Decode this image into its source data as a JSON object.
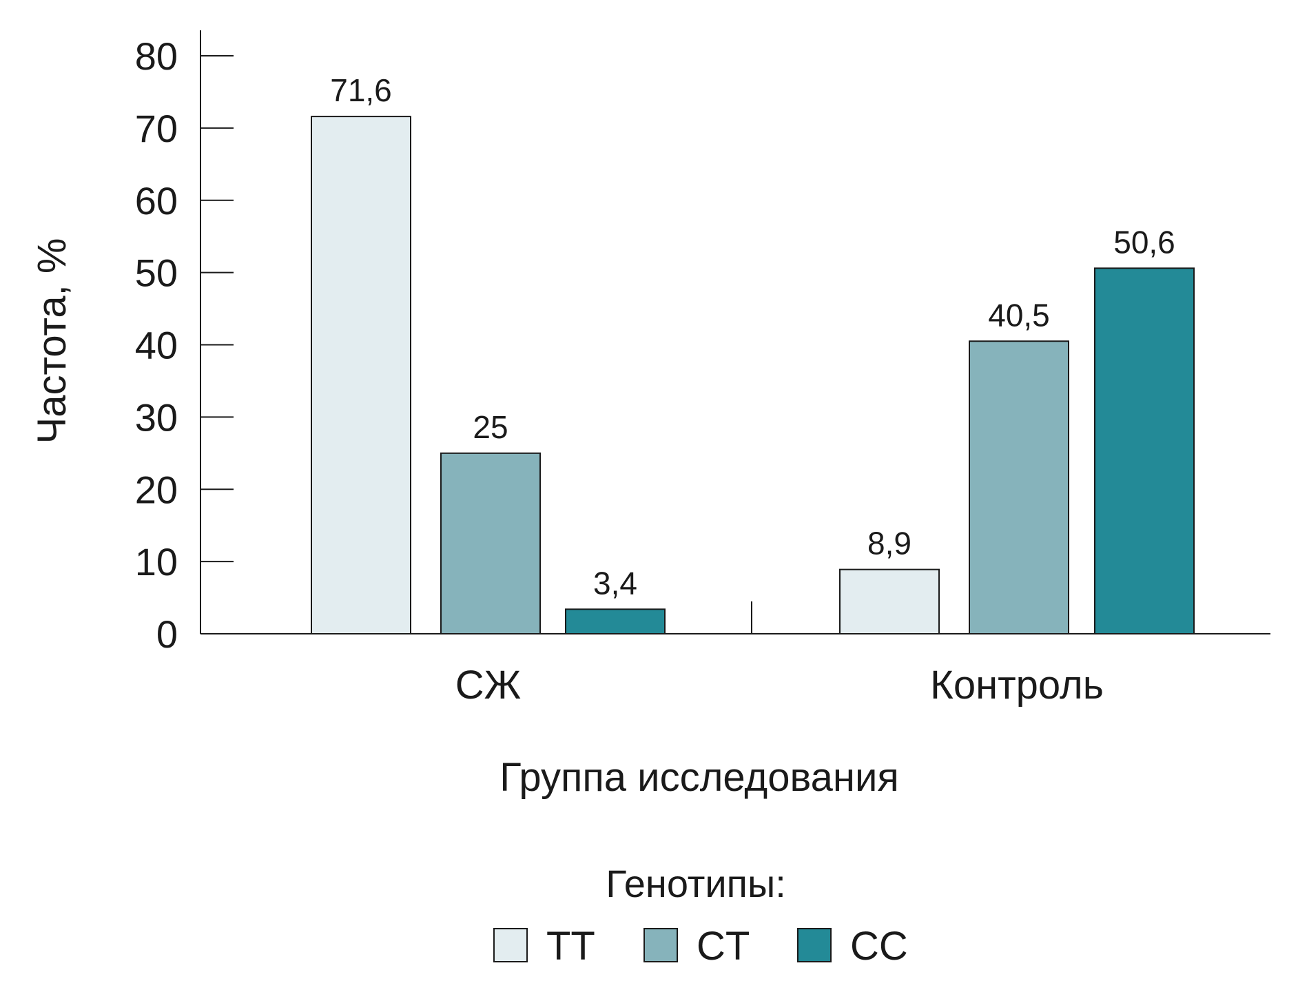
{
  "chart_data": {
    "type": "bar",
    "categories": [
      "СЖ",
      "Контроль"
    ],
    "series": [
      {
        "name": "TT",
        "values": [
          71.6,
          8.9
        ],
        "labels": [
          "71,6",
          "8,9"
        ],
        "color": "#e3edf0"
      },
      {
        "name": "CT",
        "values": [
          25,
          40.5
        ],
        "labels": [
          "25",
          "40,5"
        ],
        "color": "#86b3bb"
      },
      {
        "name": "CC",
        "values": [
          3.4,
          50.6
        ],
        "labels": [
          "3,4",
          "50,6"
        ],
        "color": "#238a97"
      }
    ],
    "xlabel": "Группа исследования",
    "ylabel": "Частота, %",
    "ylim": [
      0,
      80
    ],
    "yticks": [
      0,
      10,
      20,
      30,
      40,
      50,
      60,
      70,
      80
    ],
    "grid": false,
    "legend": {
      "title": "Генотипы:",
      "position": "bottom-center"
    }
  }
}
